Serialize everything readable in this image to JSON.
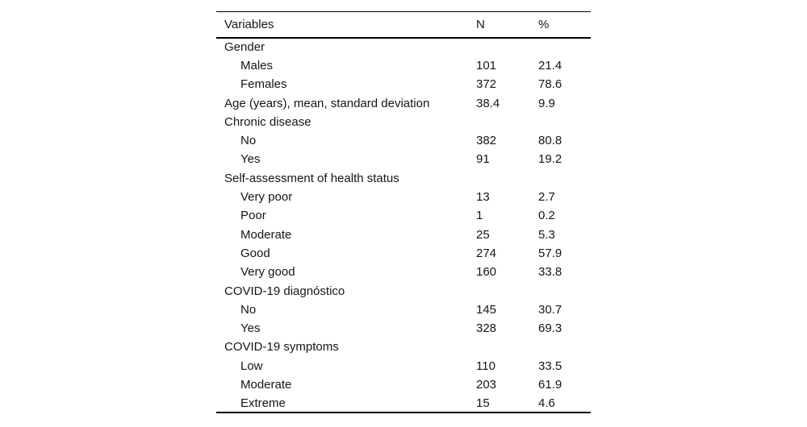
{
  "table": {
    "columns": {
      "variables": "Variables",
      "n": "N",
      "pct": "%"
    },
    "rows": [
      {
        "label": "Gender",
        "indent": 0,
        "n": "",
        "pct": ""
      },
      {
        "label": "Males",
        "indent": 1,
        "n": "101",
        "pct": "21.4"
      },
      {
        "label": "Females",
        "indent": 1,
        "n": "372",
        "pct": "78.6"
      },
      {
        "label": "Age (years), mean, standard deviation",
        "indent": 0,
        "n": "38.4",
        "pct": "9.9"
      },
      {
        "label": "Chronic disease",
        "indent": 0,
        "n": "",
        "pct": ""
      },
      {
        "label": "No",
        "indent": 1,
        "n": "382",
        "pct": "80.8"
      },
      {
        "label": "Yes",
        "indent": 1,
        "n": "91",
        "pct": "19.2"
      },
      {
        "label": "Self-assessment of health status",
        "indent": 0,
        "n": "",
        "pct": ""
      },
      {
        "label": "Very poor",
        "indent": 1,
        "n": "13",
        "pct": "2.7"
      },
      {
        "label": "Poor",
        "indent": 1,
        "n": "1",
        "pct": "0.2"
      },
      {
        "label": "Moderate",
        "indent": 1,
        "n": "25",
        "pct": "5.3"
      },
      {
        "label": "Good",
        "indent": 1,
        "n": "274",
        "pct": "57.9"
      },
      {
        "label": "Very good",
        "indent": 1,
        "n": "160",
        "pct": "33.8"
      },
      {
        "label": "COVID-19 diagnóstico",
        "indent": 0,
        "n": "",
        "pct": ""
      },
      {
        "label": "No",
        "indent": 1,
        "n": "145",
        "pct": "30.7"
      },
      {
        "label": "Yes",
        "indent": 1,
        "n": "328",
        "pct": "69.3"
      },
      {
        "label": "COVID-19 symptoms",
        "indent": 0,
        "n": "",
        "pct": ""
      },
      {
        "label": "Low",
        "indent": 1,
        "n": "110",
        "pct": "33.5"
      },
      {
        "label": "Moderate",
        "indent": 1,
        "n": "203",
        "pct": "61.9"
      },
      {
        "label": "Extreme",
        "indent": 1,
        "n": "15",
        "pct": "4.6"
      }
    ]
  }
}
